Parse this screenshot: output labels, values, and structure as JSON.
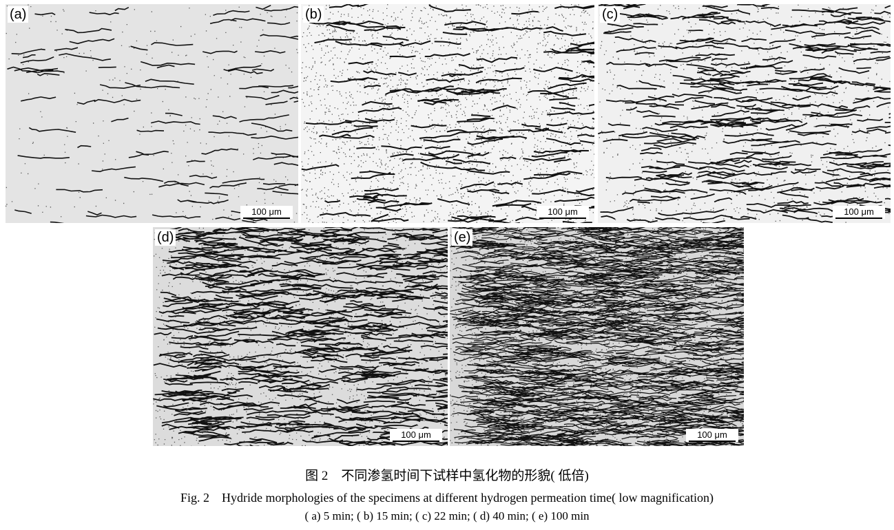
{
  "figure": {
    "panels": [
      {
        "label": "(a)",
        "scale_bar": "100 μm",
        "time": "5 min"
      },
      {
        "label": "(b)",
        "scale_bar": "100 μm",
        "time": "15 min"
      },
      {
        "label": "(c)",
        "scale_bar": "100 μm",
        "time": "22 min"
      },
      {
        "label": "(d)",
        "scale_bar": "100 μm",
        "time": "40 min"
      },
      {
        "label": "(e)",
        "scale_bar": "100 μm",
        "time": "100 min"
      }
    ],
    "caption_cn": "图 2　不同渗氢时间下试样中氢化物的形貌( 低倍)",
    "caption_en": "Fig. 2　Hydride morphologies of the specimens at different hydrogen permeation time( low magnification)",
    "caption_sub": "( a) 5 min; ( b) 15 min; ( c) 22 min; ( d) 40 min; ( e) 100 min"
  }
}
